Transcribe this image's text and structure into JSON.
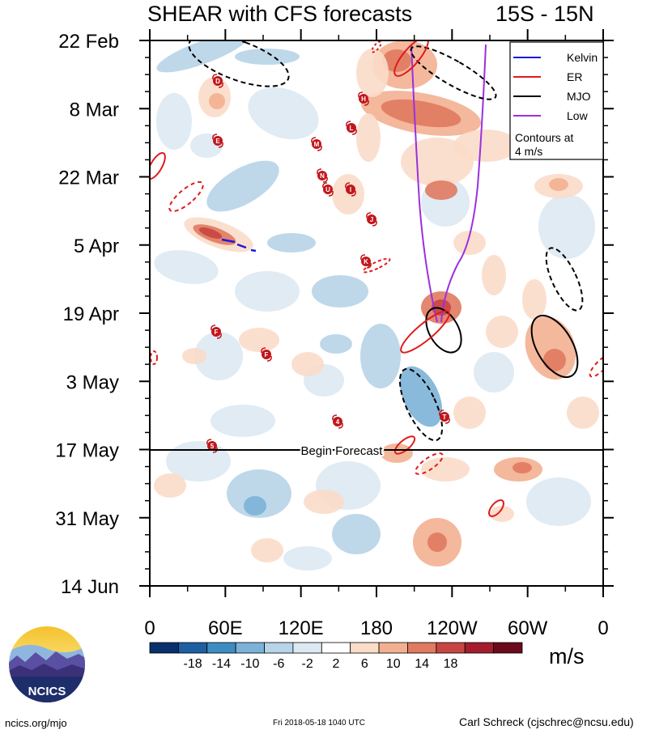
{
  "title": {
    "left": "SHEAR with CFS forecasts",
    "right": "15S - 15N"
  },
  "chart_data": {
    "type": "heatmap",
    "title": "SHEAR with CFS forecasts",
    "region": "15S - 15N",
    "y_ticks": [
      "22 Feb",
      "8 Mar",
      "22 Mar",
      "5 Apr",
      "19 Apr",
      "3 May",
      "17 May",
      "31 May",
      "14 Jun"
    ],
    "x_ticks": [
      "0",
      "60E",
      "120E",
      "180",
      "120W",
      "60W",
      "0"
    ],
    "forecast_label": "Begin Forecast",
    "forecast_start": "17 May",
    "colorbar": {
      "labels": [
        "-18",
        "-14",
        "-10",
        "-6",
        "-2",
        "2",
        "6",
        "10",
        "14",
        "18"
      ],
      "colors": [
        "#08306b",
        "#1c5fa3",
        "#3e8cc2",
        "#7cb2d7",
        "#b7d4e8",
        "#dde9f2",
        "#ffffff",
        "#fbdcc9",
        "#f3b091",
        "#e07a60",
        "#c74543",
        "#a51c2c",
        "#6b0a1b"
      ],
      "units": "m/s"
    },
    "legend": {
      "entries": [
        {
          "name": "Kelvin",
          "color": "#1a1adc"
        },
        {
          "name": "ER",
          "color": "#e11b1b"
        },
        {
          "name": "MJO",
          "color": "#000000"
        },
        {
          "name": "Low",
          "color": "#9b30e0"
        }
      ],
      "note": "Contours at 4 m/s"
    },
    "storm_markers": [
      "D",
      "H",
      "E",
      "M",
      "L",
      "N",
      "U",
      "I",
      "J",
      "K",
      "F",
      "F",
      "4",
      "5",
      "T"
    ]
  },
  "logo": {
    "text": "NCICS"
  },
  "footer": {
    "left": "ncics.org/mjo",
    "middle": "Fri 2018-05-18 1040 UTC",
    "right": "Carl Schreck (cjschrec@ncsu.edu)"
  }
}
